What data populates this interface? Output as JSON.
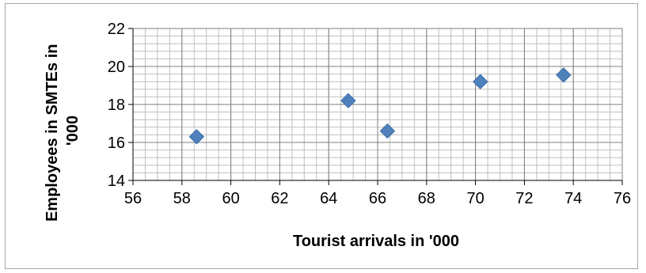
{
  "chart_data": {
    "type": "scatter",
    "title": "",
    "xlabel": "Tourist arrivals in '000",
    "ylabel_lines": [
      "Employees in SMTEs in",
      "'000"
    ],
    "xlim": [
      56,
      76
    ],
    "ylim": [
      14,
      22
    ],
    "x_ticks": [
      56,
      58,
      60,
      62,
      64,
      66,
      68,
      70,
      72,
      74,
      76
    ],
    "y_ticks": [
      14,
      16,
      18,
      20,
      22
    ],
    "x_minor_step": 0.5,
    "y_minor_step": 0.4,
    "grid": true,
    "legend": "none",
    "marker": "diamond",
    "marker_color": "#4f81bd",
    "points": [
      {
        "x": 58.6,
        "y": 16.3
      },
      {
        "x": 64.8,
        "y": 18.2
      },
      {
        "x": 66.4,
        "y": 16.6
      },
      {
        "x": 70.2,
        "y": 19.2
      },
      {
        "x": 73.6,
        "y": 19.55
      }
    ]
  }
}
